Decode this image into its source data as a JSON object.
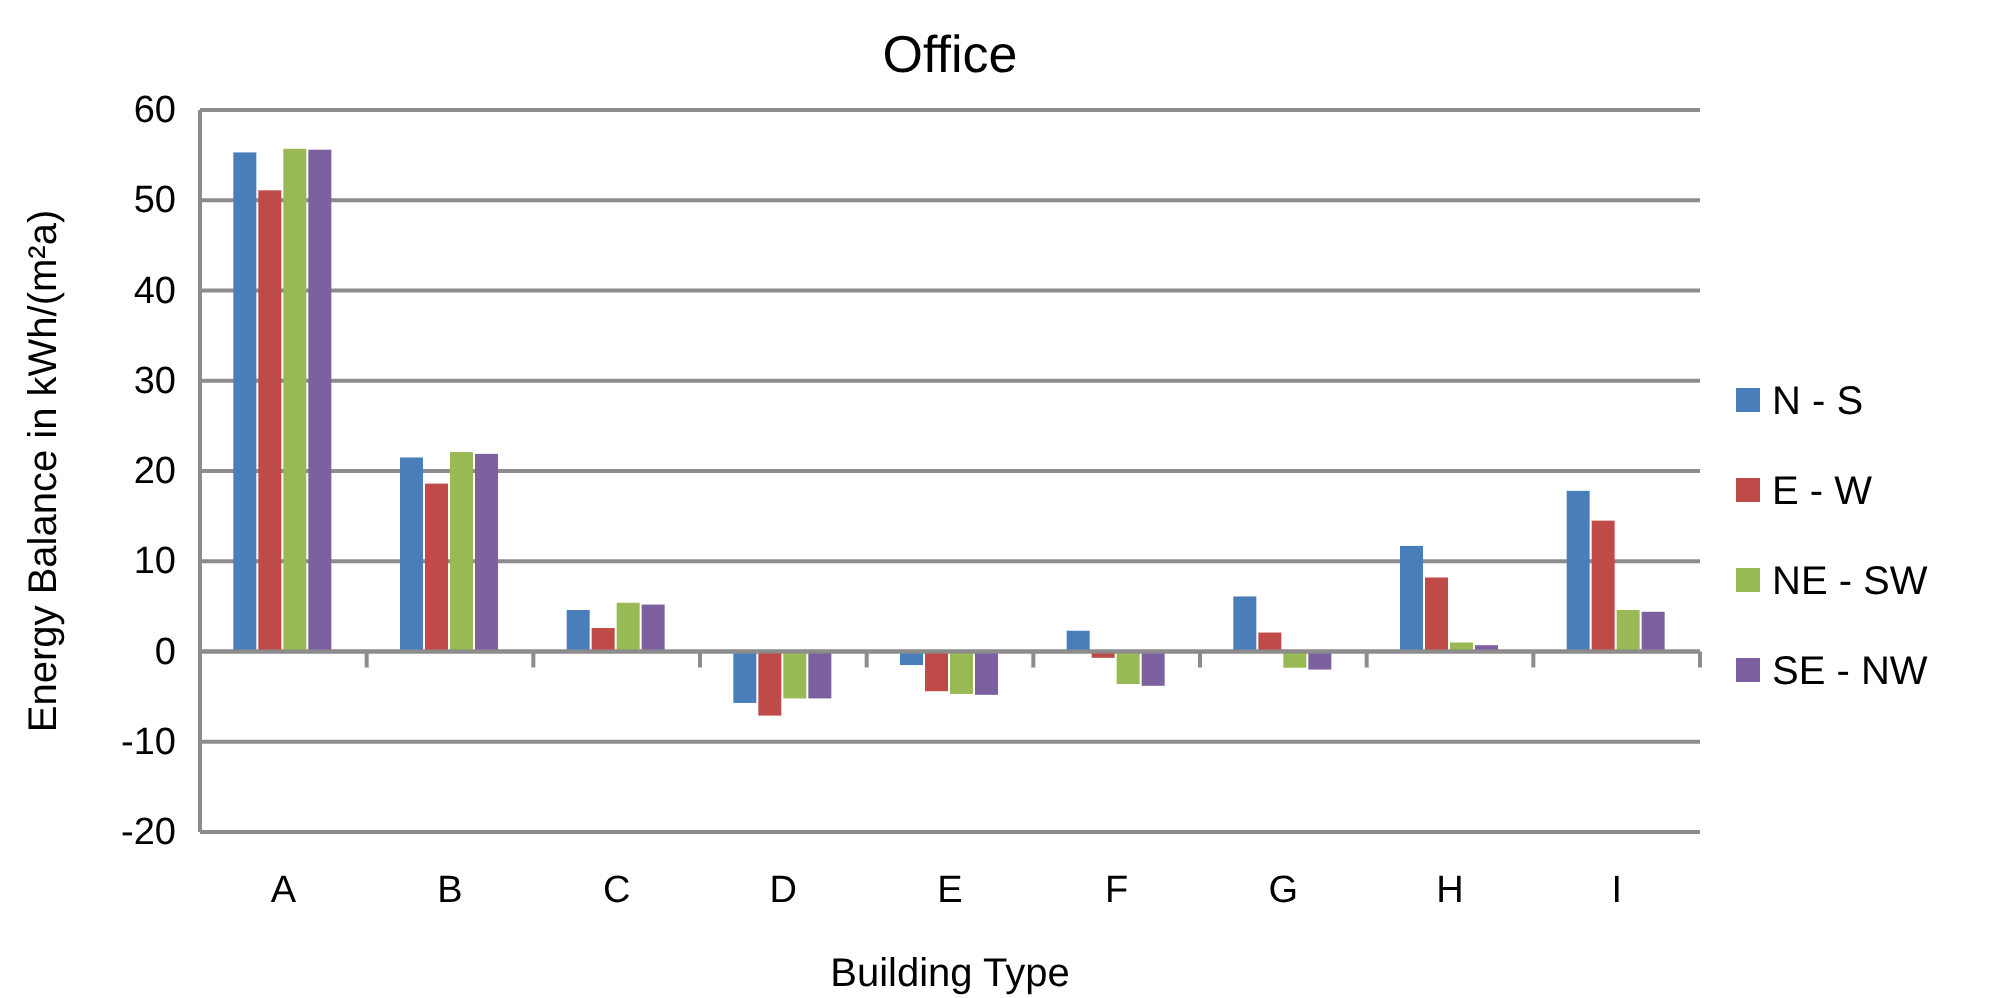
{
  "chart_data": {
    "type": "bar",
    "title": "Office",
    "xlabel": "Building Type",
    "ylabel": "Energy Balance in kWh/(m²a)",
    "categories": [
      "A",
      "B",
      "C",
      "D",
      "E",
      "F",
      "G",
      "H",
      "I"
    ],
    "series": [
      {
        "name": "N - S",
        "color": "#4a7ebb",
        "values": [
          55.3,
          21.5,
          4.6,
          -5.7,
          -1.5,
          2.3,
          6.1,
          11.7,
          17.8
        ]
      },
      {
        "name": "E - W",
        "color": "#be4b48",
        "values": [
          51.1,
          18.6,
          2.6,
          -7.1,
          -4.4,
          -0.7,
          2.1,
          8.2,
          14.5
        ]
      },
      {
        "name": "NE - SW",
        "color": "#98b954",
        "values": [
          55.7,
          22.1,
          5.4,
          -5.2,
          -4.7,
          -3.6,
          -1.8,
          1.0,
          4.6
        ]
      },
      {
        "name": "SE - NW",
        "color": "#7d60a0",
        "values": [
          55.6,
          21.9,
          5.2,
          -5.2,
          -4.8,
          -3.8,
          -2.0,
          0.7,
          4.4
        ]
      }
    ],
    "ylim": [
      -20,
      60
    ],
    "yticks": [
      -20,
      -10,
      0,
      10,
      20,
      30,
      40,
      50,
      60
    ],
    "grid": "y",
    "legend": "right"
  }
}
